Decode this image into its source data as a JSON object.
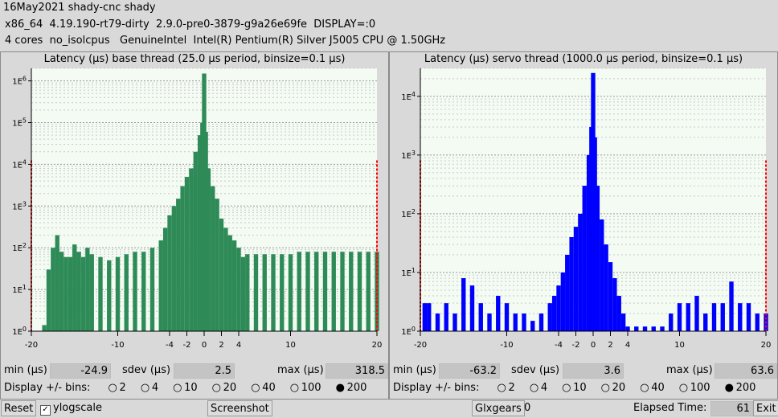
{
  "header": {
    "line1": "16May2021 shady-cnc shady",
    "line2": "x86_64  4.19.190-rt79-dirty  2.9.0-pre0-3879-g9a26e69fe  DISPLAY=:0",
    "line3": "4 cores  no_isolcpus   GenuineIntel  Intel(R) Pentium(R) Silver J5005 CPU @ 1.50GHz"
  },
  "base": {
    "title": "Latency (µs) base thread (25.0 µs period, binsize=0.1 µs)",
    "min_label": "min (µs)",
    "min": "-24.9",
    "sdev_label": "sdev (µs)",
    "sdev": "2.5",
    "max_label": "max (µs)",
    "max": "318.5",
    "bins_label": "Display +/- bins:",
    "bins": [
      "2",
      "4",
      "10",
      "20",
      "40",
      "100",
      "200"
    ],
    "selected_bin": "200"
  },
  "servo": {
    "title": "Latency (µs) servo thread (1000.0 µs period, binsize=0.1 µs)",
    "min_label": "min (µs)",
    "min": "-63.2",
    "sdev_label": "sdev (µs)",
    "sdev": "3.6",
    "max_label": "max (µs)",
    "max": "63.6",
    "bins_label": "Display +/- bins:",
    "bins": [
      "2",
      "4",
      "10",
      "20",
      "40",
      "100",
      "200"
    ],
    "selected_bin": "200"
  },
  "footer": {
    "reset": "Reset",
    "ylogscale": "ylogscale",
    "ylogscale_checked": true,
    "screenshot": "Screenshot",
    "glxgears": "Glxgears",
    "glxgears_count": "0",
    "elapsed_label": "Elapsed Time:",
    "elapsed": "61",
    "exit": "Exit"
  },
  "colors": {
    "base_bar": "#2e8b57",
    "servo_bar": "#0000ff",
    "plot_bg": "#f3fbf3",
    "marker": "#ff0000"
  },
  "chart_data": [
    {
      "type": "bar",
      "title": "Latency (µs) base thread (25.0 µs period, binsize=0.1 µs)",
      "xlabel": "",
      "ylabel": "",
      "yscale": "log",
      "xlim": [
        -20,
        20
      ],
      "ylim": [
        1,
        2000000
      ],
      "xticks": [
        -20,
        -10,
        -4,
        -2,
        0,
        2,
        4,
        10,
        20
      ],
      "yticks": [
        "1E0",
        "1E1",
        "1E2",
        "1E3",
        "1E4",
        "1E5",
        "1E6"
      ],
      "series": [
        {
          "x": [
            -20,
            -19,
            -18.5,
            -18,
            -17.5,
            -17,
            -16.5,
            -16,
            -15.5,
            -15,
            -14.5,
            -14,
            -13.5,
            -13,
            -12,
            -11,
            -10,
            -9,
            -8,
            -7,
            -6,
            -5,
            -4.5,
            -4,
            -3.5,
            -3,
            -2.5,
            -2,
            -1.5,
            -1,
            -0.5,
            -0.2,
            0,
            0.2,
            0.5,
            1,
            1.5,
            2,
            2.5,
            3,
            3.5,
            4,
            4.5,
            5,
            6,
            7,
            8,
            9,
            10,
            11,
            12,
            13,
            14,
            15,
            16,
            17,
            18,
            19,
            20
          ],
          "values": [
            1,
            1,
            1.4,
            30,
            100,
            200,
            80,
            60,
            60,
            120,
            80,
            60,
            100,
            70,
            60,
            50,
            60,
            70,
            80,
            80,
            100,
            150,
            300,
            600,
            1000,
            1500,
            3000,
            5000,
            8000,
            20000,
            50000,
            100000,
            1500000,
            60000,
            8000,
            3000,
            1500,
            500,
            300,
            200,
            150,
            100,
            60,
            70,
            70,
            70,
            70,
            70,
            70,
            80,
            80,
            80,
            80,
            80,
            80,
            80,
            80,
            80,
            80
          ]
        }
      ],
      "markers": [
        -20,
        20
      ]
    },
    {
      "type": "bar",
      "title": "Latency (µs) servo thread (1000.0 µs period, binsize=0.1 µs)",
      "xlabel": "",
      "ylabel": "",
      "yscale": "log",
      "xlim": [
        -20,
        20
      ],
      "ylim": [
        1,
        30000
      ],
      "xticks": [
        -20,
        -10,
        -4,
        -2,
        0,
        2,
        4,
        10,
        20
      ],
      "yticks": [
        "1E0",
        "1E1",
        "1E2",
        "1E3",
        "1E4"
      ],
      "series": [
        {
          "x": [
            -20,
            -19.5,
            -19,
            -18,
            -17,
            -16,
            -15,
            -14,
            -13,
            -12,
            -11,
            -10,
            -9,
            -8,
            -7,
            -6,
            -5,
            -4.5,
            -4,
            -3.5,
            -3,
            -2.5,
            -2,
            -1.5,
            -1,
            -0.5,
            -0.2,
            0,
            0.2,
            0.5,
            1,
            1.5,
            2,
            2.5,
            3,
            3.5,
            4,
            5,
            6,
            7,
            8,
            9,
            10,
            11,
            12,
            13,
            14,
            15,
            16,
            17,
            18,
            19,
            20
          ],
          "values": [
            1,
            3,
            3,
            2,
            3,
            2,
            8,
            6,
            3,
            2,
            4,
            3,
            2,
            2,
            1.5,
            2,
            3,
            4,
            6,
            10,
            20,
            40,
            60,
            100,
            300,
            1000,
            3000,
            25000,
            2000,
            300,
            80,
            30,
            15,
            8,
            4,
            2,
            1.2,
            1.2,
            1.2,
            1.2,
            1.2,
            2,
            3,
            3,
            4,
            2,
            3,
            3,
            7,
            3,
            3,
            2,
            2
          ]
        }
      ],
      "markers": [
        -20,
        20
      ]
    }
  ]
}
